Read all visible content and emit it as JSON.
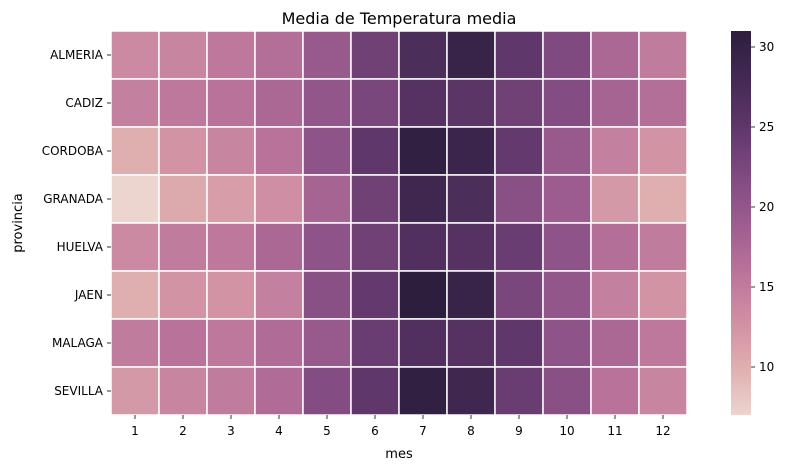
{
  "chart_data": {
    "type": "heatmap",
    "title": "Media de Temperatura media",
    "xlabel": "mes",
    "ylabel": "provincia",
    "x_categories": [
      "1",
      "2",
      "3",
      "4",
      "5",
      "6",
      "7",
      "8",
      "9",
      "10",
      "11",
      "12"
    ],
    "y_categories": [
      "ALMERIA",
      "CADIZ",
      "CORDOBA",
      "GRANADA",
      "HUELVA",
      "JAEN",
      "MALAGA",
      "SEVILLA"
    ],
    "values": [
      [
        13.5,
        14.0,
        15.5,
        16.5,
        19.5,
        23.5,
        27.0,
        29.5,
        25.0,
        22.0,
        17.5,
        15.0
      ],
      [
        14.5,
        15.5,
        16.0,
        17.5,
        20.0,
        22.5,
        26.0,
        25.5,
        23.5,
        21.5,
        18.0,
        16.5
      ],
      [
        10.0,
        12.5,
        14.0,
        16.0,
        20.5,
        25.0,
        30.5,
        29.0,
        24.5,
        19.5,
        14.5,
        12.5
      ],
      [
        7.0,
        10.5,
        11.5,
        13.0,
        18.0,
        23.5,
        28.5,
        27.0,
        21.0,
        19.0,
        12.0,
        10.0
      ],
      [
        13.5,
        15.0,
        15.5,
        17.5,
        20.5,
        23.5,
        26.5,
        26.0,
        24.0,
        20.5,
        16.5,
        15.0
      ],
      [
        10.0,
        12.5,
        12.5,
        14.5,
        21.0,
        24.5,
        31.0,
        29.5,
        22.5,
        20.0,
        14.5,
        12.5
      ],
      [
        15.0,
        16.0,
        15.5,
        17.0,
        19.5,
        24.0,
        26.5,
        26.0,
        25.0,
        20.5,
        17.5,
        15.5
      ],
      [
        12.0,
        14.0,
        15.0,
        17.0,
        21.5,
        25.0,
        30.5,
        28.5,
        24.0,
        21.0,
        16.0,
        14.0
      ]
    ],
    "colorbar": {
      "vmin": 7.0,
      "vmax": 31.0,
      "ticks": [
        10,
        15,
        20,
        25,
        30
      ],
      "colormap": "cubehelix (seaborn light-to-dark purple)"
    },
    "colormap_stops": [
      "#ecd4cf",
      "#dfaeaf",
      "#cf8ea3",
      "#b9739a",
      "#9d5c8f",
      "#7e4a80",
      "#5f376a",
      "#432954",
      "#2d1e3e"
    ],
    "cell_border_color": "#ffffff",
    "grid": false
  }
}
